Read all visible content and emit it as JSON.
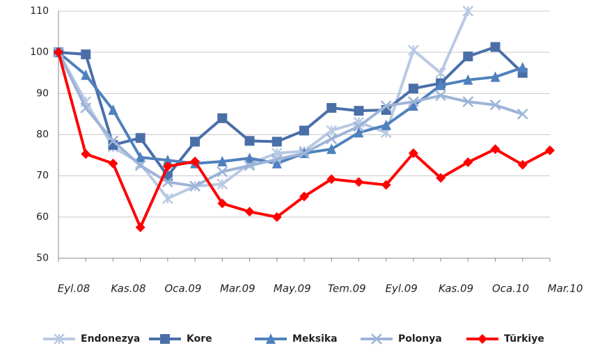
{
  "chart_data": {
    "type": "line",
    "categories": [
      "Eyl.08",
      null,
      "Kas.08",
      null,
      "Oca.09",
      null,
      "Mar.09",
      null,
      "May.09",
      null,
      "Tem.09",
      null,
      "Eyl.09",
      null,
      "Kas.09",
      null,
      "Oca.10",
      null,
      "Mar.10"
    ],
    "series": [
      {
        "name": "Endonezya",
        "color": "#b9c9e3",
        "marker": "star",
        "values": [
          100,
          88,
          77,
          73,
          64.5,
          67.5,
          68,
          73,
          75.5,
          76,
          81,
          83,
          80.5,
          100.5,
          95,
          110,
          null,
          null,
          null
        ]
      },
      {
        "name": "Kore",
        "color": "#4a6fa8",
        "marker": "square",
        "values": [
          100,
          99.5,
          77.5,
          79.2,
          70,
          78.3,
          84,
          78.5,
          78.3,
          81,
          86.5,
          85.8,
          86,
          91.2,
          92.5,
          99,
          101.3,
          95,
          null
        ]
      },
      {
        "name": "Meksika",
        "color": "#4f81bd",
        "marker": "triangle",
        "values": [
          100,
          94.5,
          86,
          74.5,
          73.8,
          73,
          73.5,
          74.3,
          73,
          75.5,
          76.5,
          80.5,
          82.3,
          87,
          92,
          93.3,
          94,
          96.3,
          null
        ]
      },
      {
        "name": "Polonya",
        "color": "#9db4d8",
        "marker": "x",
        "values": [
          100,
          86.5,
          78.5,
          72.5,
          68.5,
          67.5,
          71,
          72.5,
          74,
          75.5,
          79,
          82,
          87,
          88,
          89.5,
          88,
          87.2,
          85,
          null
        ]
      },
      {
        "name": "Türkiye",
        "color": "#ff0000",
        "marker": "diamond",
        "values": [
          100,
          75.3,
          73,
          57.5,
          72.3,
          73.5,
          63.3,
          61.3,
          60,
          65,
          69.2,
          68.5,
          67.8,
          75.5,
          69.5,
          73.3,
          76.5,
          72.7,
          76.2
        ]
      }
    ],
    "ylim": [
      50,
      110
    ],
    "yticks": [
      50,
      60,
      70,
      80,
      90,
      100,
      110
    ],
    "grid": true,
    "legend": "bottom"
  }
}
